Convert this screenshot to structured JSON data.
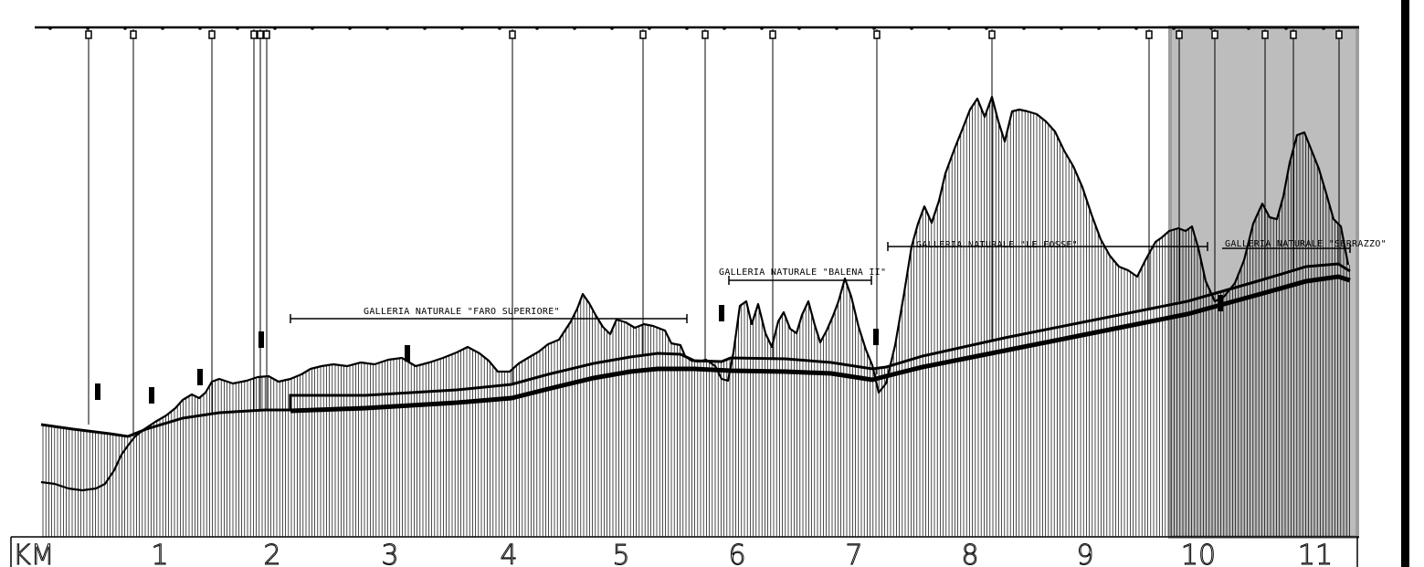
{
  "profile": {
    "axis_unit": "KM",
    "km_ticks": [
      "1",
      "2",
      "3",
      "4",
      "5",
      "6",
      "7",
      "8",
      "9",
      "10",
      "11"
    ],
    "tunnels": [
      {
        "label": "GALLERIA NATURALE \"FARO SUPERIORE\"",
        "start_km": 2.15,
        "end_km": 5.6
      },
      {
        "label": "GALLERIA NATURALE \"BALENA II\"",
        "start_km": 5.95,
        "end_km": 7.15
      },
      {
        "label": "GALLERIA NATURALE \"LE FOSSE\"",
        "start_km": 7.3,
        "end_km": 10.0
      },
      {
        "label": "GALLERIA NATURALE \"SERRAZZO\"",
        "start_km": 10.2,
        "end_km": 11.45
      }
    ],
    "highlight_range_km": [
      9.75,
      11.5
    ]
  },
  "colors": {
    "ink": "#000000",
    "highlight_fill": "#bdbdbd",
    "highlight_stroke": "#9e9e9e",
    "background": "#ffffff"
  }
}
